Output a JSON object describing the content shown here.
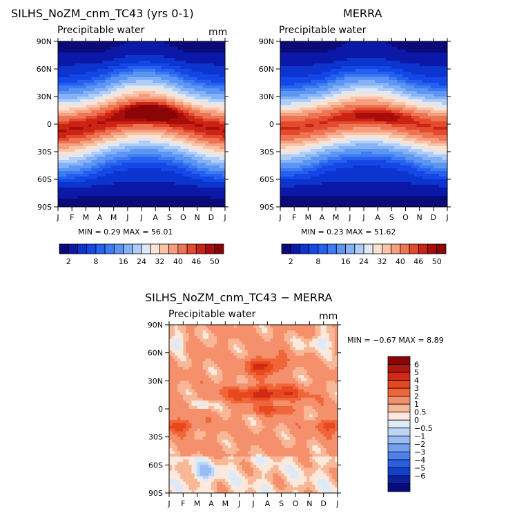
{
  "panels": {
    "model": {
      "title": "SILHS_NoZM_cnm_TC43 (yrs 0-1)",
      "variable": "Precipitable water",
      "units": "mm",
      "minmax": "MIN =    0.29 MAX =   56.01"
    },
    "obs": {
      "title": "MERRA",
      "variable": "Precipitable water",
      "units": "mm",
      "minmax": "MIN =    0.23 MAX =   51.62"
    },
    "diff": {
      "title": "SILHS_NoZM_cnm_TC43 − MERRA",
      "variable": "Precipitable water",
      "units": "mm",
      "minmax": "MIN =   −0.67 MAX =    8.89"
    }
  },
  "colors": {
    "abs_palette": [
      "#0a0a78",
      "#0b18a8",
      "#0c34cf",
      "#1448e6",
      "#2660ee",
      "#3c7bf2",
      "#5c95f4",
      "#84b2f6",
      "#b0cdf8",
      "#dfe7f3",
      "#fbe3d4",
      "#f8c3a8",
      "#f59f7f",
      "#ee7554",
      "#e34a2e",
      "#cb2414",
      "#a80d0a",
      "#8a0606"
    ],
    "diff_palette": [
      "#8a0606",
      "#b01610",
      "#d02a14",
      "#e8481e",
      "#f0663a",
      "#f5906c",
      "#f8b898",
      "#fde9dc",
      "#dfeaf8",
      "#bcd4f6",
      "#98bcf4",
      "#739ff0",
      "#4c80ea",
      "#2a5fe2",
      "#1240cc",
      "#0a22a0",
      "#060a7a"
    ]
  },
  "chart_data": [
    {
      "type": "heatmap",
      "title": "SILHS_NoZM_cnm_TC43 (yrs 0-1)",
      "subtitle": "Precipitable water",
      "units": "mm",
      "x_ticks": [
        "J",
        "F",
        "M",
        "A",
        "M",
        "J",
        "J",
        "A",
        "S",
        "O",
        "N",
        "D",
        "J"
      ],
      "y_ticks": [
        "90N",
        "60N",
        "30N",
        "0",
        "30S",
        "60S",
        "90S"
      ],
      "x_range": [
        0,
        12
      ],
      "y_range": [
        -90,
        90
      ],
      "colorbar_labels": [
        "2",
        "8",
        "16",
        "24",
        "32",
        "40",
        "46",
        "50"
      ],
      "colorbar_levels": [
        2,
        4,
        6,
        8,
        10,
        12,
        16,
        20,
        24,
        28,
        32,
        36,
        40,
        44,
        46,
        48,
        50
      ],
      "min": 0.29,
      "max": 56.01
    },
    {
      "type": "heatmap",
      "title": "MERRA",
      "subtitle": "Precipitable water",
      "units": "mm",
      "x_ticks": [
        "J",
        "F",
        "M",
        "A",
        "M",
        "J",
        "J",
        "A",
        "S",
        "O",
        "N",
        "D",
        "J"
      ],
      "y_ticks": [
        "90N",
        "60N",
        "30N",
        "0",
        "30S",
        "60S",
        "90S"
      ],
      "x_range": [
        0,
        12
      ],
      "y_range": [
        -90,
        90
      ],
      "colorbar_labels": [
        "2",
        "8",
        "16",
        "24",
        "32",
        "40",
        "46",
        "50"
      ],
      "colorbar_levels": [
        2,
        4,
        6,
        8,
        10,
        12,
        16,
        20,
        24,
        28,
        32,
        36,
        40,
        44,
        46,
        48,
        50
      ],
      "min": 0.23,
      "max": 51.62
    },
    {
      "type": "heatmap",
      "title": "SILHS_NoZM_cnm_TC43 − MERRA",
      "subtitle": "Precipitable water",
      "units": "mm",
      "x_ticks": [
        "J",
        "F",
        "M",
        "A",
        "M",
        "J",
        "J",
        "A",
        "S",
        "O",
        "N",
        "D",
        "J"
      ],
      "y_ticks": [
        "90N",
        "60N",
        "30N",
        "0",
        "30S",
        "60S",
        "90S"
      ],
      "x_range": [
        0,
        12
      ],
      "y_range": [
        -90,
        90
      ],
      "colorbar_labels": [
        "6",
        "5",
        "4",
        "3",
        "2",
        "1",
        "0.5",
        "0",
        "−0.5",
        "−1",
        "−2",
        "−3",
        "−4",
        "−5",
        "−6"
      ],
      "colorbar_levels": [
        6,
        5,
        4,
        3,
        2,
        1,
        0.5,
        0,
        -0.5,
        -1,
        -2,
        -3,
        -4,
        -5,
        -6
      ],
      "min": -0.67,
      "max": 8.89
    }
  ]
}
